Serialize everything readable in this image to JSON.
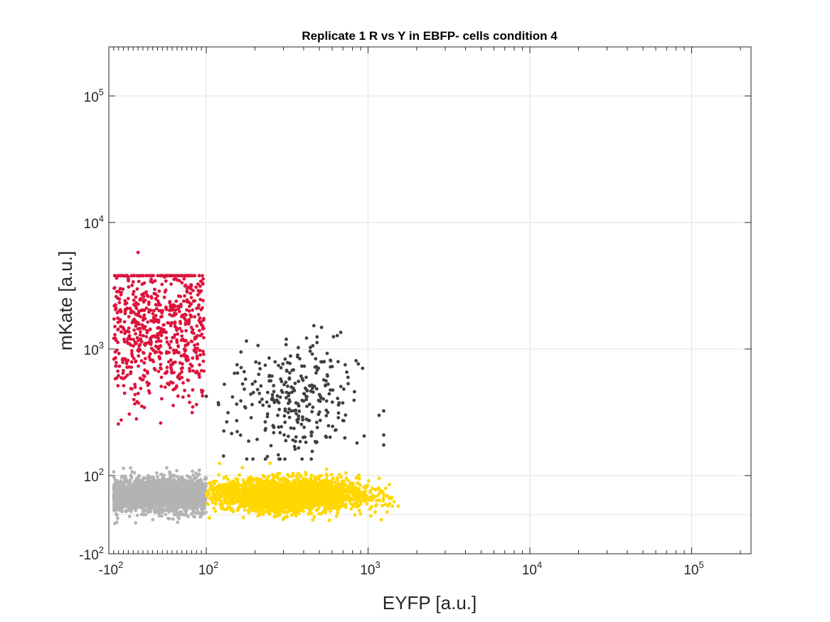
{
  "chart_data": {
    "type": "scatter",
    "title": "Replicate 1 R vs Y in EBFP- cells condition 4",
    "xlabel": "EYFP [a.u.]",
    "ylabel": "mKate [a.u.]",
    "scale": "biexponential (linear near zero, log above 10^2)",
    "xlim": [
      -100,
      250000
    ],
    "ylim": [
      -100,
      250000
    ],
    "grid": true,
    "legend": "none",
    "x_ticks": [
      {
        "base": "-10",
        "exp": "2",
        "value": -100
      },
      {
        "base": "10",
        "exp": "2",
        "value": 100
      },
      {
        "base": "10",
        "exp": "3",
        "value": 1000
      },
      {
        "base": "10",
        "exp": "4",
        "value": 10000
      },
      {
        "base": "10",
        "exp": "5",
        "value": 100000
      }
    ],
    "y_ticks": [
      {
        "base": "-10",
        "exp": "2",
        "value": -100
      },
      {
        "base": "10",
        "exp": "2",
        "value": 100
      },
      {
        "base": "10",
        "exp": "3",
        "value": 1000
      },
      {
        "base": "10",
        "exp": "4",
        "value": 10000
      },
      {
        "base": "10",
        "exp": "5",
        "value": 100000
      }
    ],
    "series": [
      {
        "color": "#b3b3b3",
        "count": 2600,
        "x_range": [
          -90,
          100
        ],
        "y_center": 50,
        "y_spread": 38,
        "description_values": {
          "x_median": 30,
          "y_median": 50
        }
      },
      {
        "color": "#ffd700",
        "count": 4000,
        "x_range": [
          100,
          1550
        ],
        "y_center": 50,
        "y_spread": 38,
        "description_values": {
          "x_median": 330,
          "y_median": 50
        }
      },
      {
        "color": "#dc143c",
        "count": 700,
        "x_range": [
          -90,
          95
        ],
        "y_log_range": [
          140,
          3800
        ],
        "description_values": {
          "x_median": 30,
          "y_median": 1500
        }
      },
      {
        "color": "#404040",
        "count": 300,
        "x_range": [
          100,
          1250
        ],
        "y_log_range": [
          135,
          4000
        ],
        "description_values": {
          "x_median": 350,
          "y_median": 380
        }
      }
    ]
  }
}
